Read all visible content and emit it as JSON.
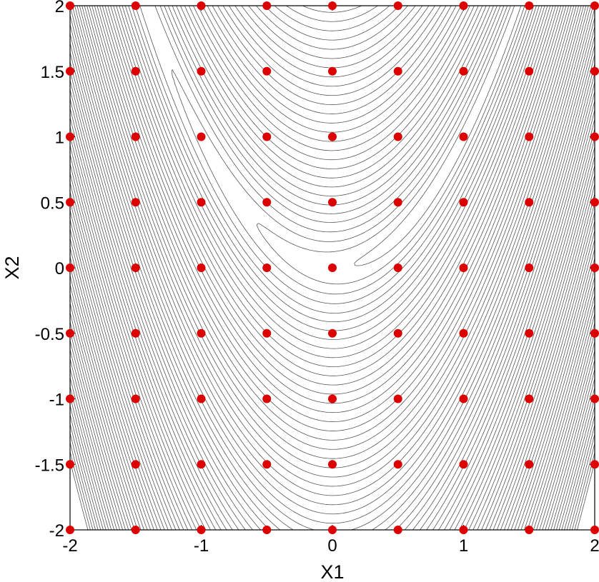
{
  "chart_data": {
    "type": "scatter",
    "title": "",
    "xlabel": "X1",
    "ylabel": "X2",
    "xlim": [
      -2,
      2
    ],
    "ylim": [
      -2,
      2
    ],
    "grid": false,
    "x_ticks": [
      "-2",
      "-1",
      "0",
      "1",
      "2"
    ],
    "y_ticks": [
      "2",
      "1.5",
      "1",
      "0.5",
      "0",
      "-0.5",
      "-1",
      "-1.5",
      "-2"
    ],
    "x_tick_values": [
      -2,
      -1,
      0,
      1,
      2
    ],
    "y_tick_values": [
      2,
      1.5,
      1,
      0.5,
      0,
      -0.5,
      -1,
      -1.5,
      -2
    ],
    "point_color": "#dd0000",
    "contour_color": "#555555",
    "points": {
      "x": [
        -2,
        -1.5,
        -1,
        -0.5,
        0,
        0.5,
        1,
        1.5,
        2
      ],
      "y": [
        -2,
        -1.5,
        -1,
        -0.5,
        0,
        0.5,
        1,
        1.5,
        2
      ],
      "layout": "full grid (every x paired with every y)"
    },
    "contours": {
      "function": "rosenbrock",
      "levels": [
        0.7,
        2.5,
        5,
        8.5,
        13,
        18,
        24,
        31,
        39,
        48,
        58,
        69,
        81,
        94,
        108,
        123,
        139,
        156,
        174,
        193,
        213,
        234,
        256,
        279,
        303,
        328,
        354,
        381,
        409,
        438,
        468,
        499,
        531,
        564,
        598,
        633,
        669,
        706,
        744,
        783,
        823,
        864,
        906,
        949,
        993,
        1038,
        1084,
        1131,
        1179,
        1228,
        1278,
        1329,
        1381,
        1434,
        1488,
        1543,
        1599,
        1656,
        1714,
        1773,
        1833,
        1894,
        1956,
        2019,
        2083,
        2148,
        2214,
        2281,
        2349,
        2418,
        2488,
        2559,
        2631,
        2704,
        2778,
        2853,
        2929,
        3006
      ]
    }
  }
}
